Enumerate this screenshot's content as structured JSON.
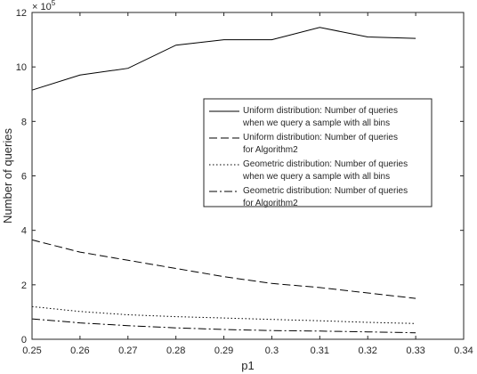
{
  "chart_data": {
    "type": "line",
    "title": "",
    "xlabel": "p1",
    "ylabel": "Number of queries",
    "y_exponent_label": "× 10^5",
    "y_exponent": {
      "base": "× 10",
      "power": "5"
    },
    "xlim": [
      0.25,
      0.34
    ],
    "ylim": [
      0,
      12
    ],
    "x_ticks": [
      0.25,
      0.26,
      0.27,
      0.28,
      0.29,
      0.3,
      0.31,
      0.32,
      0.33,
      0.34
    ],
    "x_tick_labels": [
      "0.25",
      "0.26",
      "0.27",
      "0.28",
      "0.29",
      "0.3",
      "0.31",
      "0.32",
      "0.33",
      "0.34"
    ],
    "y_ticks": [
      0,
      2,
      4,
      6,
      8,
      10,
      12
    ],
    "y_tick_labels": [
      "0",
      "2",
      "4",
      "6",
      "8",
      "10",
      "12"
    ],
    "grid": false,
    "legend_position": "right",
    "x": [
      0.25,
      0.26,
      0.27,
      0.28,
      0.29,
      0.3,
      0.31,
      0.32,
      0.33
    ],
    "series": [
      {
        "name_lines": [
          "Uniform distribution: Number of queries",
          "when we query a sample with all bins"
        ],
        "linestyle": "solid",
        "values": [
          9.15,
          9.7,
          9.95,
          10.8,
          11.0,
          11.0,
          11.45,
          11.1,
          11.05
        ]
      },
      {
        "name_lines": [
          "Uniform distribution: Number of queries",
          "for Algorithm2"
        ],
        "linestyle": "dashed",
        "values": [
          3.65,
          3.2,
          2.9,
          2.6,
          2.3,
          2.05,
          1.9,
          1.7,
          1.5
        ]
      },
      {
        "name_lines": [
          "Geometric distribution: Number of queries",
          "when we query a sample with all bins"
        ],
        "linestyle": "dotted",
        "values": [
          1.2,
          1.02,
          0.9,
          0.83,
          0.78,
          0.73,
          0.68,
          0.62,
          0.58
        ]
      },
      {
        "name_lines": [
          "Geometric distribution: Number of queries",
          "for Algorithm2"
        ],
        "linestyle": "dashdot",
        "values": [
          0.75,
          0.6,
          0.5,
          0.42,
          0.36,
          0.32,
          0.3,
          0.27,
          0.24
        ]
      }
    ]
  }
}
